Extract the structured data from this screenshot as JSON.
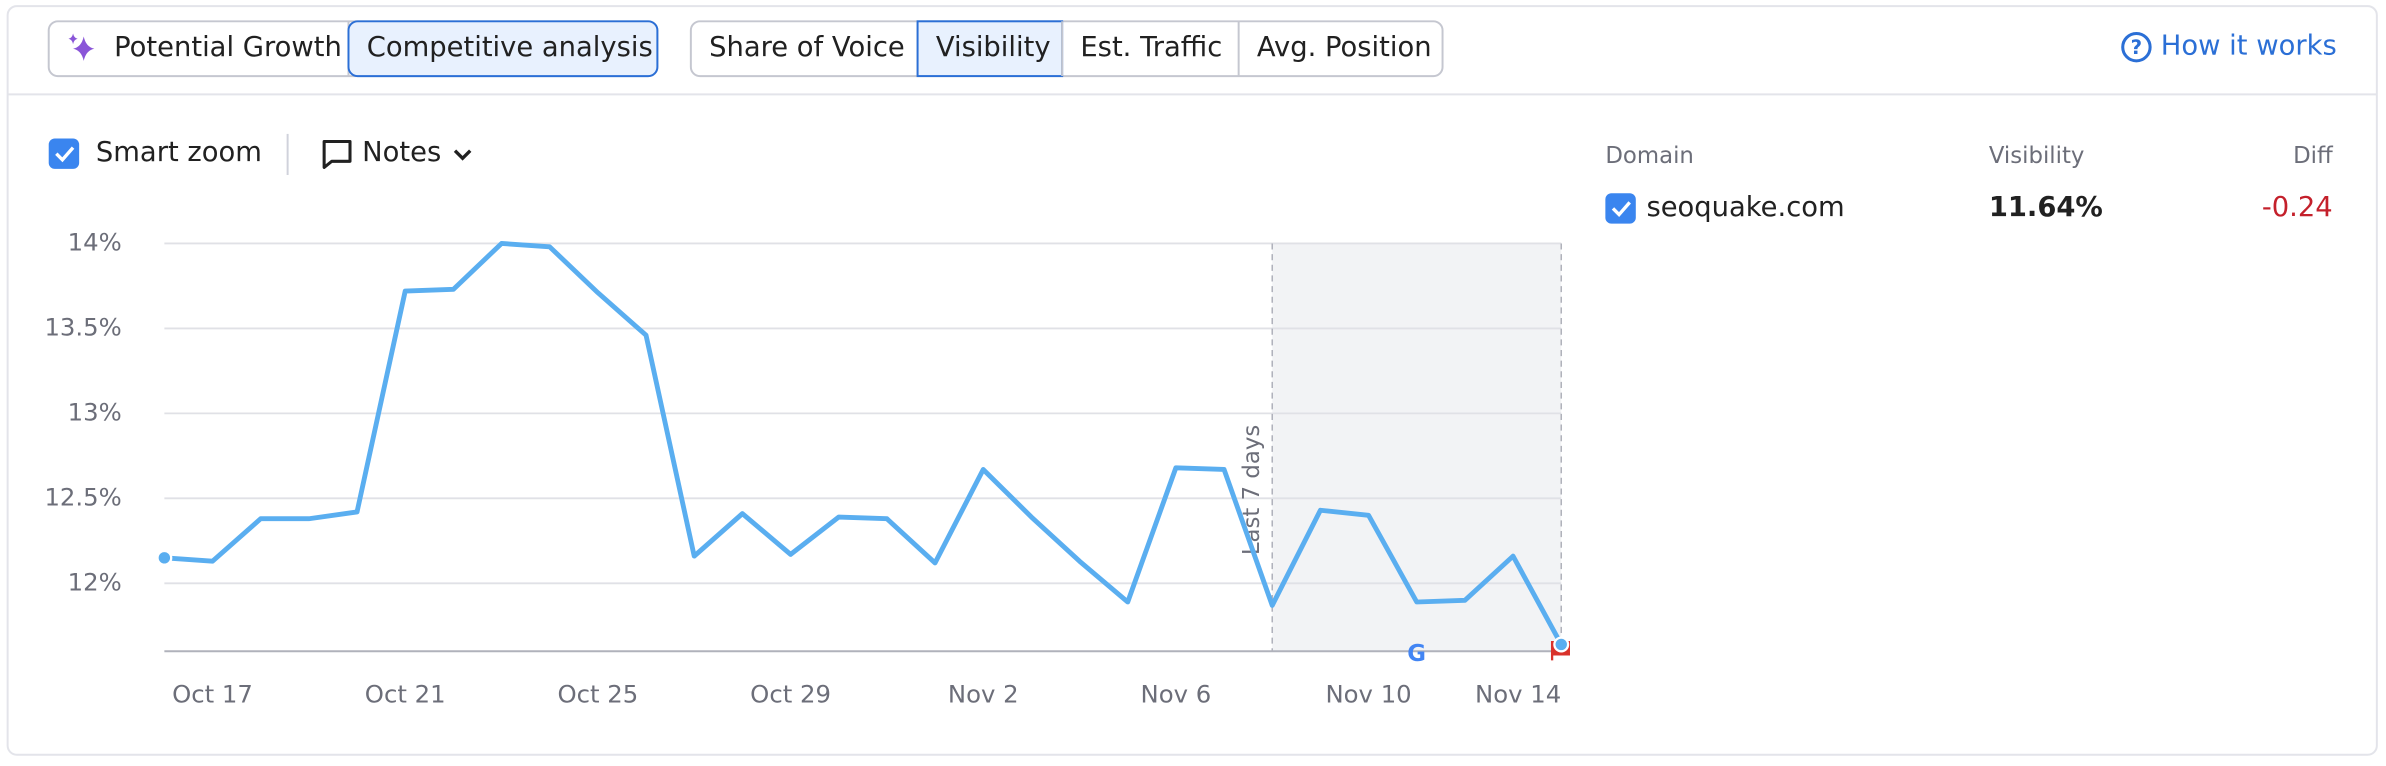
{
  "toolbar": {
    "mode_tabs": [
      {
        "label": "Potential Growth",
        "selected": false
      },
      {
        "label": "Competitive analysis",
        "selected": true
      }
    ],
    "metric_tabs": [
      {
        "label": "Share of Voice",
        "selected": false
      },
      {
        "label": "Visibility",
        "selected": true
      },
      {
        "label": "Est. Traffic",
        "selected": false
      },
      {
        "label": "Avg. Position",
        "selected": false
      }
    ],
    "help_link": "How it works"
  },
  "controls": {
    "smart_zoom": {
      "label": "Smart zoom",
      "checked": true
    },
    "notes": "Notes"
  },
  "table": {
    "headers": [
      "Domain",
      "Visibility",
      "Diff"
    ],
    "rows": [
      {
        "domain": "seoquake.com",
        "visibility": "11.64%",
        "diff": "-0.24",
        "checked": true
      }
    ]
  },
  "chart_data": {
    "type": "line",
    "categories": [
      null,
      "Oct 17",
      null,
      null,
      null,
      "Oct 21",
      null,
      null,
      null,
      "Oct 25",
      null,
      null,
      null,
      "Oct 29",
      null,
      null,
      null,
      "Nov 2",
      null,
      null,
      null,
      "Nov 6",
      null,
      null,
      null,
      "Nov 10",
      null,
      null,
      null,
      "Nov 14"
    ],
    "values": [
      12.15,
      12.13,
      12.38,
      12.38,
      12.42,
      13.72,
      13.73,
      14.0,
      13.98,
      13.71,
      13.46,
      12.16,
      12.41,
      12.17,
      12.39,
      12.38,
      12.12,
      12.67,
      12.39,
      12.13,
      11.89,
      12.68,
      12.67,
      11.87,
      12.43,
      12.4,
      11.89,
      11.9,
      12.16,
      11.64
    ],
    "color": "#5aaef0",
    "ylim": [
      11.6,
      14
    ],
    "yticks": [
      {
        "value": 12,
        "label": "12%"
      },
      {
        "value": 12.5,
        "label": "12.5%"
      },
      {
        "value": 13,
        "label": "13%"
      },
      {
        "value": 13.5,
        "label": "13.5%"
      },
      {
        "value": 14,
        "label": "14%"
      }
    ],
    "grid": true,
    "annotation": "Last 7 days",
    "shaded_last_points": 7
  }
}
